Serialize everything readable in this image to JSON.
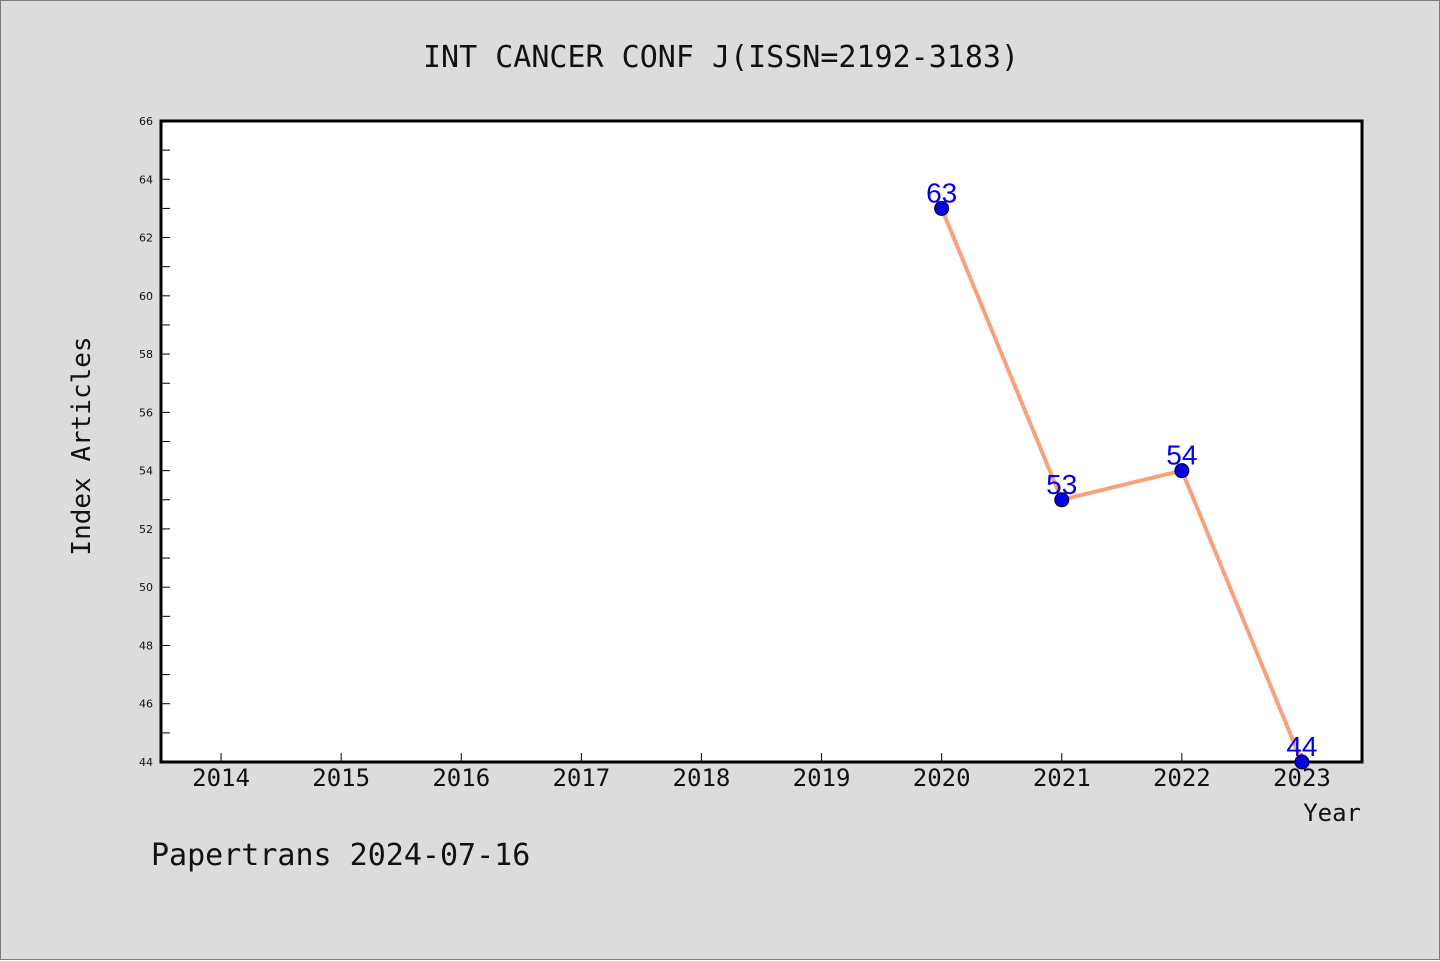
{
  "chart_data": {
    "type": "line",
    "title": "INT CANCER CONF J(ISSN=2192-3183)",
    "xlabel": "Year",
    "ylabel": "Index Articles",
    "x_ticks": [
      "2014",
      "2015",
      "2016",
      "2017",
      "2018",
      "2019",
      "2020",
      "2021",
      "2022",
      "2023"
    ],
    "x_range": [
      2013.5,
      2023.5
    ],
    "ylim": [
      44,
      66
    ],
    "y_ticks": [
      44,
      46,
      48,
      50,
      52,
      54,
      56,
      58,
      60,
      62,
      64,
      66
    ],
    "y_tick_labels": [
      "44",
      "46",
      "48",
      "50",
      "52",
      "54",
      "56",
      "58",
      "60",
      "62",
      "64",
      "66"
    ],
    "grid": false,
    "series": [
      {
        "x": [
          2020,
          2021,
          2022,
          2023
        ],
        "values": [
          63,
          53,
          54,
          44
        ],
        "labels": [
          "63",
          "53",
          "54",
          "44"
        ],
        "line_color": "#f7a27e",
        "marker_color": "#0000ee"
      }
    ]
  },
  "footer": "Papertrans 2024-07-16"
}
